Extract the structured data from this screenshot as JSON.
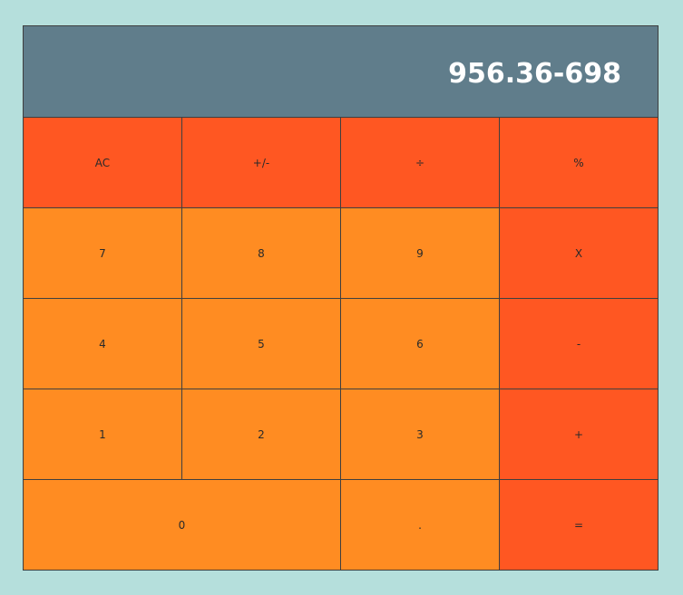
{
  "display": {
    "value": "956.36-698"
  },
  "keypad": {
    "rows": [
      [
        {
          "label": "AC",
          "name": "clear-button",
          "color": "red"
        },
        {
          "label": "+/-",
          "name": "sign-toggle-button",
          "color": "red"
        },
        {
          "label": "÷",
          "name": "divide-button",
          "color": "red"
        },
        {
          "label": "%",
          "name": "percent-button",
          "color": "red"
        }
      ],
      [
        {
          "label": "7",
          "name": "digit-7-button",
          "color": "orange"
        },
        {
          "label": "8",
          "name": "digit-8-button",
          "color": "orange"
        },
        {
          "label": "9",
          "name": "digit-9-button",
          "color": "orange"
        },
        {
          "label": "X",
          "name": "multiply-button",
          "color": "red"
        }
      ],
      [
        {
          "label": "4",
          "name": "digit-4-button",
          "color": "orange"
        },
        {
          "label": "5",
          "name": "digit-5-button",
          "color": "orange"
        },
        {
          "label": "6",
          "name": "digit-6-button",
          "color": "orange"
        },
        {
          "label": "-",
          "name": "subtract-button",
          "color": "red"
        }
      ],
      [
        {
          "label": "1",
          "name": "digit-1-button",
          "color": "orange"
        },
        {
          "label": "2",
          "name": "digit-2-button",
          "color": "orange"
        },
        {
          "label": "3",
          "name": "digit-3-button",
          "color": "orange"
        },
        {
          "label": "+",
          "name": "add-button",
          "color": "red"
        }
      ],
      [
        {
          "label": "0",
          "name": "digit-0-button",
          "color": "orange",
          "wide": true
        },
        {
          "label": ".",
          "name": "decimal-point-button",
          "color": "orange"
        },
        {
          "label": "=",
          "name": "equals-button",
          "color": "red"
        }
      ]
    ]
  },
  "colors": {
    "background": "#b5dfdc",
    "display": "#607d8b",
    "operator_key": "#ff5722",
    "number_key": "#ff8c22",
    "border": "#3f3f3f"
  }
}
